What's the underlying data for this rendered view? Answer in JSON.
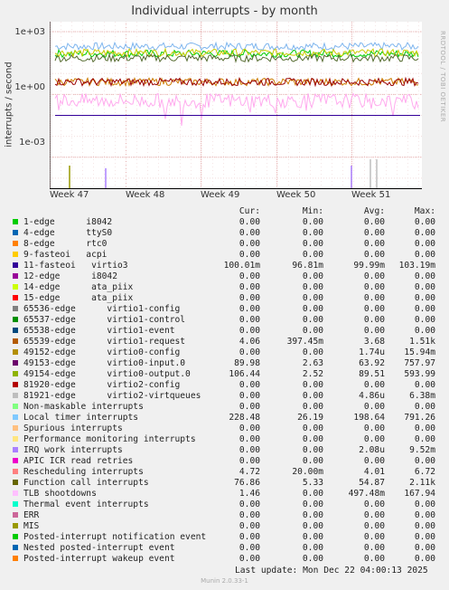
{
  "title": "Individual interrupts - by month",
  "side_text": "RRDTOOL / TOBI OETIKER",
  "footer": "Last update:  Mon Dec 22 04:00:13 2025",
  "munin": "Munin 2.0.33-1",
  "chart_data": {
    "type": "line",
    "ylabel": "interrupts / second",
    "yscale": "log",
    "ylim": [
      3e-05,
      3000
    ],
    "y_ticks": [
      "1e+03",
      "1e+00",
      "1e-03"
    ],
    "x_ticks": [
      "Week 47",
      "Week 48",
      "Week 49",
      "Week 50",
      "Week 51"
    ],
    "grid": true,
    "series": [
      {
        "name": "Local timer interrupts",
        "color": "#7eb5ee",
        "level": 200
      },
      {
        "name": "virtio0-input.0",
        "color": "#00cc00",
        "level": 90
      },
      {
        "name": "virtio0-output.0",
        "color": "#cccc00",
        "level": 100
      },
      {
        "name": "Function call interrupts",
        "color": "#556b2f",
        "level": 55
      },
      {
        "name": "virtio1-request",
        "color": "#cc7a00",
        "level": 4
      },
      {
        "name": "Rescheduling interrupts",
        "color": "#990000",
        "level": 4
      },
      {
        "name": "TLB shootdowns",
        "color": "#ffaaee",
        "level": 0.5
      },
      {
        "name": "virtio3",
        "color": "#330099",
        "level": 0.1
      }
    ]
  },
  "headers": {
    "cur": "Cur:",
    "min": "Min:",
    "avg": "Avg:",
    "max": "Max:"
  },
  "rows": [
    {
      "label": "1-edge      i8042",
      "color": "#00cc00",
      "cur": "0.00",
      "min": "0.00",
      "avg": "0.00",
      "max": "0.00"
    },
    {
      "label": "4-edge      ttyS0",
      "color": "#0066b3",
      "cur": "0.00",
      "min": "0.00",
      "avg": "0.00",
      "max": "0.00"
    },
    {
      "label": "8-edge      rtc0",
      "color": "#ff8000",
      "cur": "0.00",
      "min": "0.00",
      "avg": "0.00",
      "max": "0.00"
    },
    {
      "label": "9-fasteoi   acpi",
      "color": "#ffcc00",
      "cur": "0.00",
      "min": "0.00",
      "avg": "0.00",
      "max": "0.00"
    },
    {
      "label": "11-fasteoi   virtio3",
      "color": "#330099",
      "cur": "100.01m",
      "min": "96.81m",
      "avg": "99.99m",
      "max": "103.19m"
    },
    {
      "label": "12-edge      i8042",
      "color": "#990099",
      "cur": "0.00",
      "min": "0.00",
      "avg": "0.00",
      "max": "0.00"
    },
    {
      "label": "14-edge      ata_piix",
      "color": "#ccff00",
      "cur": "0.00",
      "min": "0.00",
      "avg": "0.00",
      "max": "0.00"
    },
    {
      "label": "15-edge      ata_piix",
      "color": "#ff0000",
      "cur": "0.00",
      "min": "0.00",
      "avg": "0.00",
      "max": "0.00"
    },
    {
      "label": "65536-edge      virtio1-config",
      "color": "#808080",
      "cur": "0.00",
      "min": "0.00",
      "avg": "0.00",
      "max": "0.00"
    },
    {
      "label": "65537-edge      virtio1-control",
      "color": "#008f00",
      "cur": "0.00",
      "min": "0.00",
      "avg": "0.00",
      "max": "0.00"
    },
    {
      "label": "65538-edge      virtio1-event",
      "color": "#00487d",
      "cur": "0.00",
      "min": "0.00",
      "avg": "0.00",
      "max": "0.00"
    },
    {
      "label": "65539-edge      virtio1-request",
      "color": "#b35a00",
      "cur": "4.06",
      "min": "397.45m",
      "avg": "3.68",
      "max": "1.51k"
    },
    {
      "label": "49152-edge      virtio0-config",
      "color": "#b38f00",
      "cur": "0.00",
      "min": "0.00",
      "avg": "1.74u",
      "max": "15.94m"
    },
    {
      "label": "49153-edge      virtio0-input.0",
      "color": "#6b006b",
      "cur": "89.98",
      "min": "2.63",
      "avg": "63.92",
      "max": "757.97"
    },
    {
      "label": "49154-edge      virtio0-output.0",
      "color": "#8fb300",
      "cur": "106.44",
      "min": "2.52",
      "avg": "89.51",
      "max": "593.99"
    },
    {
      "label": "81920-edge      virtio2-config",
      "color": "#b30000",
      "cur": "0.00",
      "min": "0.00",
      "avg": "0.00",
      "max": "0.00"
    },
    {
      "label": "81921-edge      virtio2-virtqueues",
      "color": "#bebebe",
      "cur": "0.00",
      "min": "0.00",
      "avg": "4.86u",
      "max": "6.38m"
    },
    {
      "label": "Non-maskable interrupts",
      "color": "#80ff80",
      "cur": "0.00",
      "min": "0.00",
      "avg": "0.00",
      "max": "0.00"
    },
    {
      "label": "Local timer interrupts",
      "color": "#80c9ff",
      "cur": "228.48",
      "min": "26.19",
      "avg": "198.64",
      "max": "791.26"
    },
    {
      "label": "Spurious interrupts",
      "color": "#ffc080",
      "cur": "0.00",
      "min": "0.00",
      "avg": "0.00",
      "max": "0.00"
    },
    {
      "label": "Performance monitoring interrupts",
      "color": "#ffe680",
      "cur": "0.00",
      "min": "0.00",
      "avg": "0.00",
      "max": "0.00"
    },
    {
      "label": "IRQ work interrupts",
      "color": "#aa80ff",
      "cur": "0.00",
      "min": "0.00",
      "avg": "2.08u",
      "max": "9.52m"
    },
    {
      "label": "APIC ICR read retries",
      "color": "#ee00cc",
      "cur": "0.00",
      "min": "0.00",
      "avg": "0.00",
      "max": "0.00"
    },
    {
      "label": "Rescheduling interrupts",
      "color": "#ff8080",
      "cur": "4.72",
      "min": "20.00m",
      "avg": "4.01",
      "max": "6.72"
    },
    {
      "label": "Function call interrupts",
      "color": "#666600",
      "cur": "76.86",
      "min": "5.33",
      "avg": "54.87",
      "max": "2.11k"
    },
    {
      "label": "TLB shootdowns",
      "color": "#ffbfff",
      "cur": "1.46",
      "min": "0.00",
      "avg": "497.48m",
      "max": "167.94"
    },
    {
      "label": "Thermal event interrupts",
      "color": "#00ffcc",
      "cur": "0.00",
      "min": "0.00",
      "avg": "0.00",
      "max": "0.00"
    },
    {
      "label": "ERR",
      "color": "#cc6699",
      "cur": "0.00",
      "min": "0.00",
      "avg": "0.00",
      "max": "0.00"
    },
    {
      "label": "MIS",
      "color": "#999900",
      "cur": "0.00",
      "min": "0.00",
      "avg": "0.00",
      "max": "0.00"
    },
    {
      "label": "Posted-interrupt notification event",
      "color": "#00cc00",
      "cur": "0.00",
      "min": "0.00",
      "avg": "0.00",
      "max": "0.00"
    },
    {
      "label": "Nested posted-interrupt event",
      "color": "#0066b3",
      "cur": "0.00",
      "min": "0.00",
      "avg": "0.00",
      "max": "0.00"
    },
    {
      "label": "Posted-interrupt wakeup event",
      "color": "#ff8000",
      "cur": "0.00",
      "min": "0.00",
      "avg": "0.00",
      "max": "0.00"
    }
  ]
}
